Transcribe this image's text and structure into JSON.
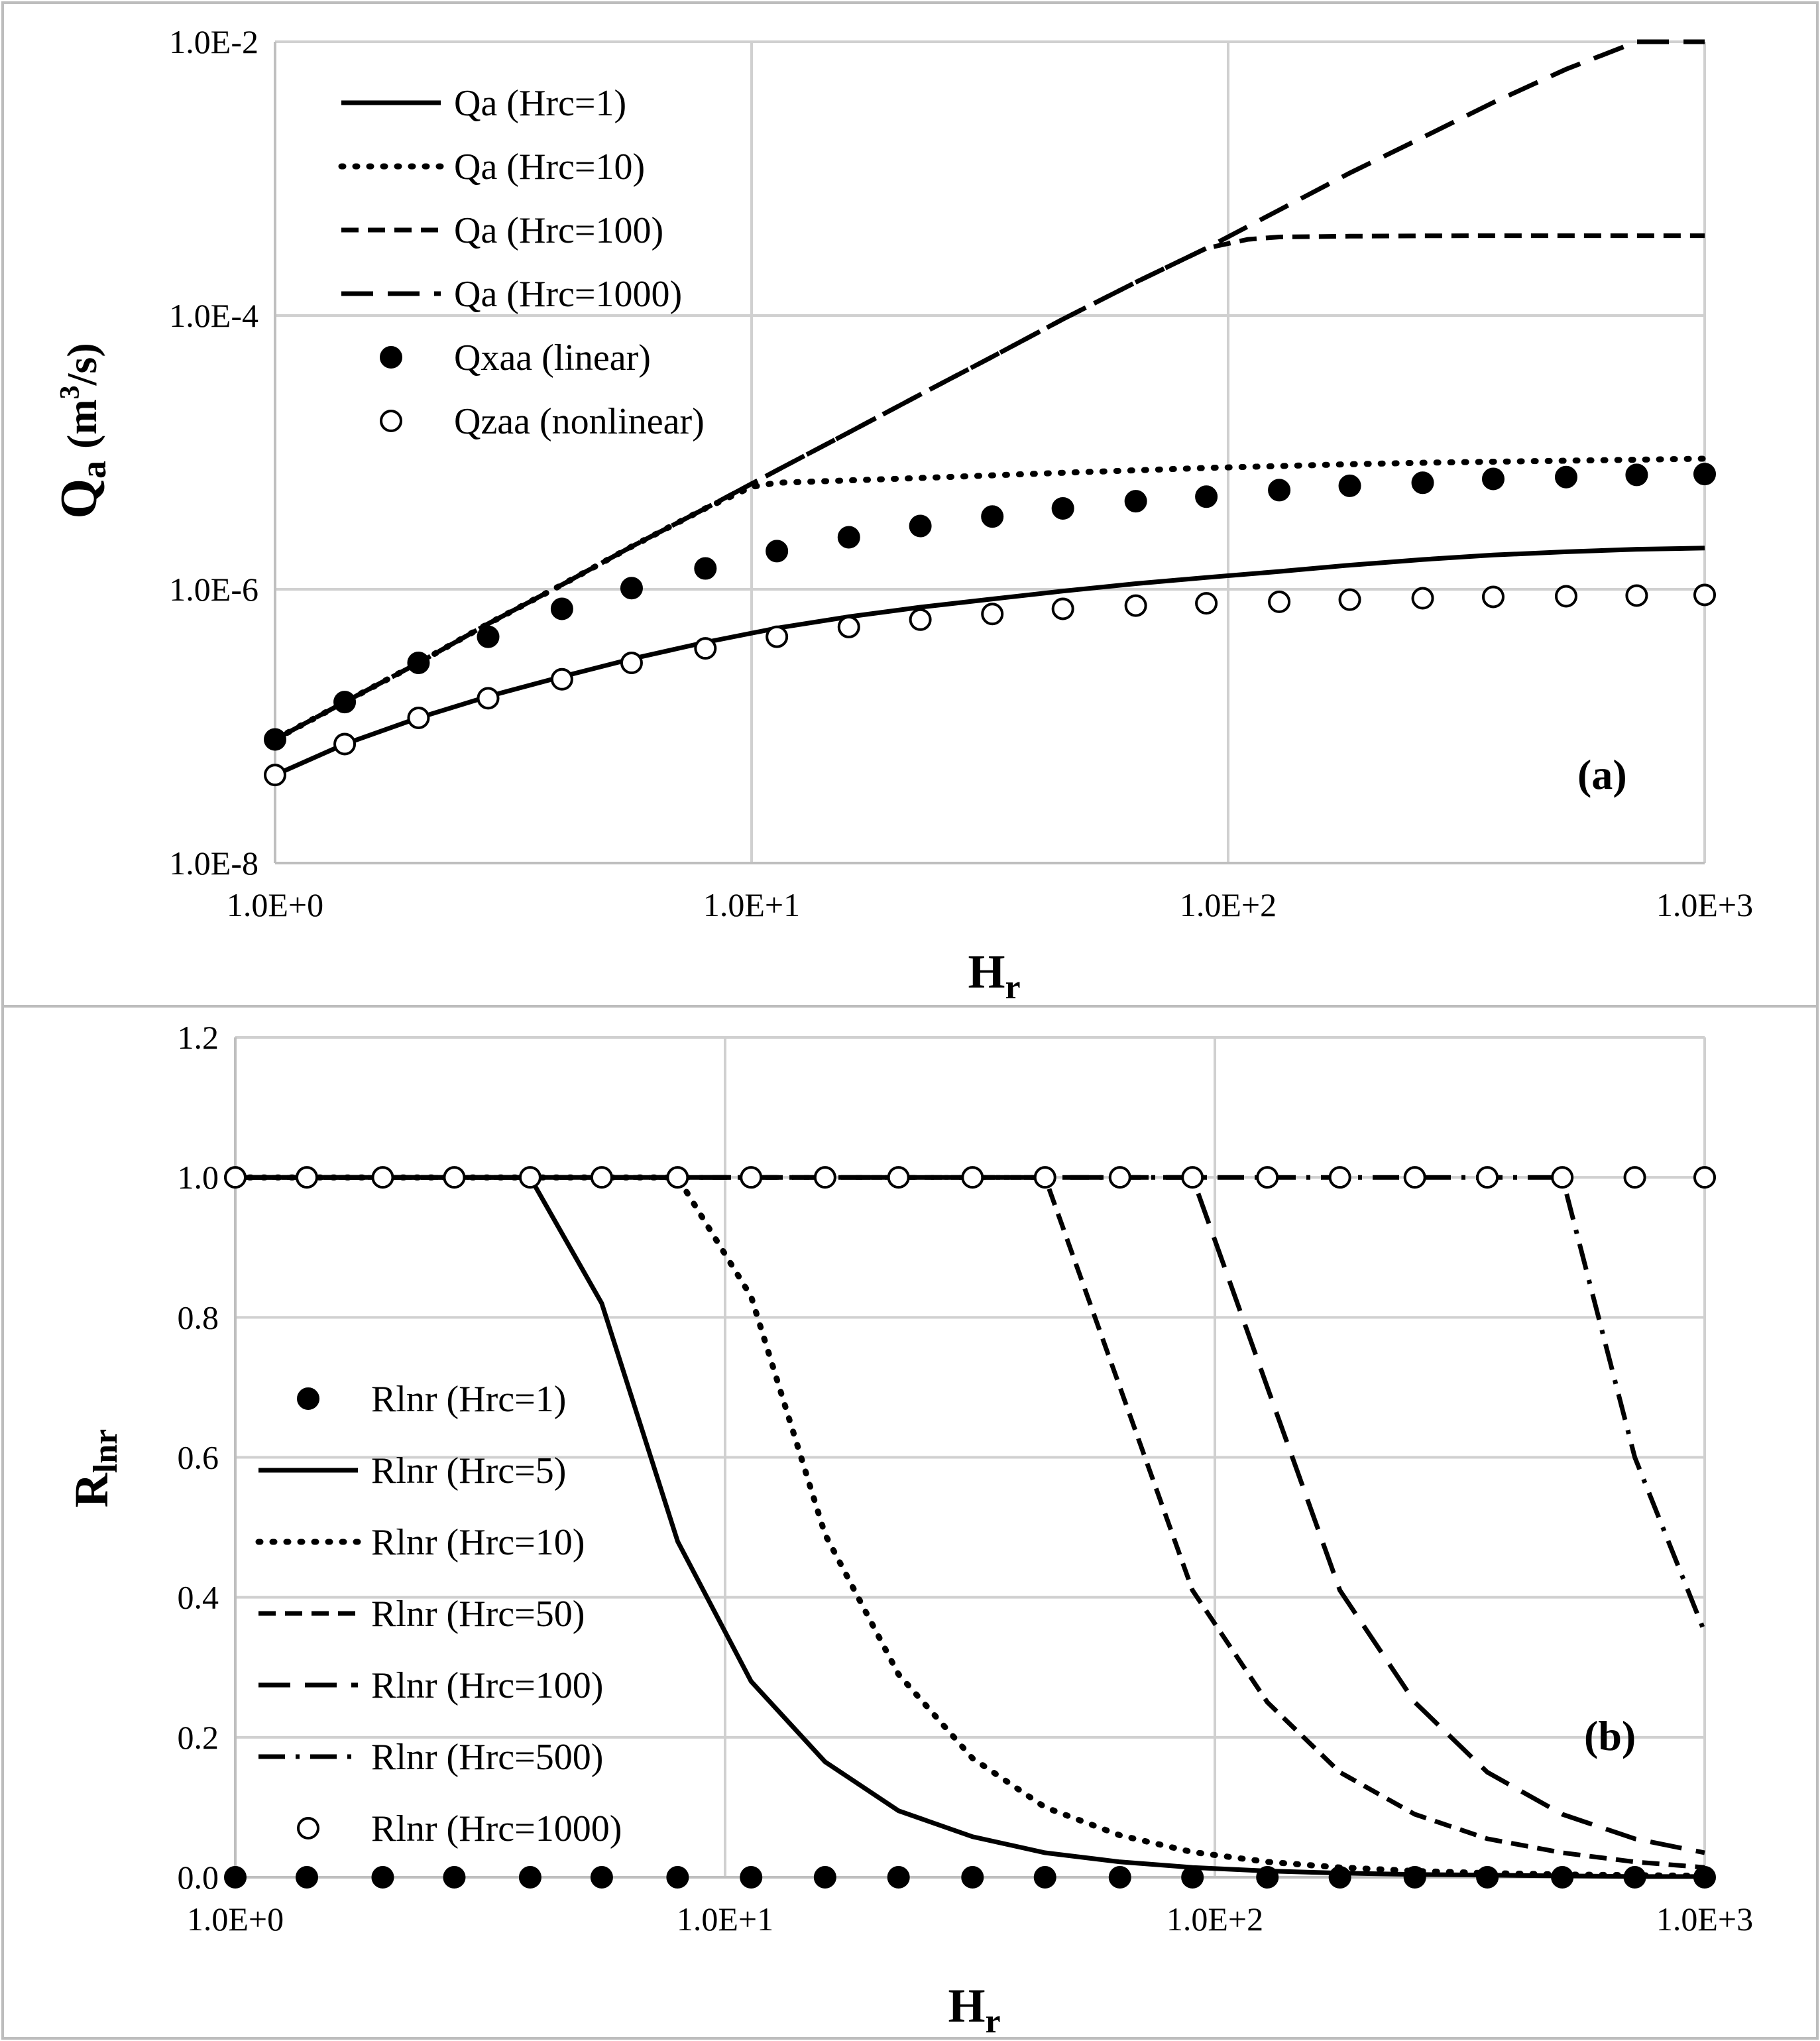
{
  "chart_data": [
    {
      "id": "a",
      "type": "line",
      "panel_label": "(a)",
      "xlabel_main": "H",
      "xlabel_sub": "r",
      "ylabel_main": "Q",
      "ylabel_sub": "a",
      "ylabel_unit_pre": "(m",
      "ylabel_unit_sup": "3",
      "ylabel_unit_post": "/s)",
      "xscale": "log",
      "yscale": "log",
      "xlim": [
        1,
        1000
      ],
      "ylim": [
        1e-08,
        0.01
      ],
      "grid": true,
      "legend_position": "top-left",
      "xticks": [
        {
          "v": 1,
          "label": "1.0E+0"
        },
        {
          "v": 10,
          "label": "1.0E+1"
        },
        {
          "v": 100,
          "label": "1.0E+2"
        },
        {
          "v": 1000,
          "label": "1.0E+3"
        }
      ],
      "yticks": [
        {
          "v": 1e-08,
          "label": "1.0E-8"
        },
        {
          "v": 1e-06,
          "label": "1.0E-6"
        },
        {
          "v": 0.0001,
          "label": "1.0E-4"
        },
        {
          "v": 0.01,
          "label": "1.0E-2"
        }
      ],
      "x_points": [
        1,
        1.4,
        2,
        2.8,
        4,
        5.6,
        8,
        11.3,
        16,
        22.6,
        32,
        45,
        64,
        90,
        128,
        180,
        256,
        360,
        512,
        720,
        1000
      ],
      "series": [
        {
          "name": "Qa (Hrc=1)",
          "style": "solid",
          "x": [
            1,
            1.4,
            2,
            2.8,
            4,
            5.6,
            8,
            11.3,
            16,
            22.6,
            32,
            45,
            64,
            90,
            128,
            180,
            256,
            360,
            512,
            720,
            1000
          ],
          "y": [
            4.4e-08,
            7.4e-08,
            1.15e-07,
            1.65e-07,
            2.3e-07,
            3.1e-07,
            4.1e-07,
            5.2e-07,
            6.3e-07,
            7.4e-07,
            8.5e-07,
            9.7e-07,
            1.1e-06,
            1.22e-06,
            1.35e-06,
            1.5e-06,
            1.65e-06,
            1.78e-06,
            1.88e-06,
            1.96e-06,
            2e-06
          ]
        },
        {
          "name": "Qa (Hrc=10)",
          "style": "dotted",
          "x": [
            1,
            1.4,
            2,
            2.8,
            4,
            5.6,
            8,
            10,
            11.3,
            16,
            22.6,
            32,
            45,
            64,
            90,
            128,
            180,
            256,
            360,
            512,
            720,
            1000
          ],
          "y": [
            8e-08,
            1.5e-07,
            2.9e-07,
            5.6e-07,
            1.08e-06,
            2.05e-06,
            3.9e-06,
            5.6e-06,
            6e-06,
            6.25e-06,
            6.5e-06,
            6.8e-06,
            7.1e-06,
            7.4e-06,
            7.7e-06,
            7.95e-06,
            8.2e-06,
            8.4e-06,
            8.55e-06,
            8.7e-06,
            8.85e-06,
            9e-06
          ]
        },
        {
          "name": "Qa (Hrc=100)",
          "style": "short-dash",
          "x": [
            1,
            1.4,
            2,
            2.8,
            4,
            5.6,
            8,
            11.3,
            16,
            22.6,
            32,
            45,
            64,
            90,
            110,
            128,
            180,
            256,
            360,
            512,
            720,
            1000
          ],
          "y": [
            8e-08,
            1.5e-07,
            2.9e-07,
            5.6e-07,
            1.08e-06,
            2.05e-06,
            3.9e-06,
            7.4e-06,
            1.4e-05,
            2.65e-05,
            5e-05,
            9.4e-05,
            0.000175,
            0.00031,
            0.00036,
            0.000375,
            0.00038,
            0.000382,
            0.000383,
            0.000383,
            0.000383,
            0.000383
          ]
        },
        {
          "name": "Qa (Hrc=1000)",
          "style": "long-dash",
          "x": [
            1,
            1.4,
            2,
            2.8,
            4,
            5.6,
            8,
            11.3,
            16,
            22.6,
            32,
            45,
            64,
            90,
            128,
            180,
            256,
            360,
            512,
            720,
            1000
          ],
          "y": [
            8e-08,
            1.5e-07,
            2.9e-07,
            5.6e-07,
            1.08e-06,
            2.05e-06,
            3.9e-06,
            7.4e-06,
            1.4e-05,
            2.65e-05,
            5e-05,
            9.4e-05,
            0.000175,
            0.00031,
            0.00059,
            0.0011,
            0.002,
            0.0036,
            0.0063,
            0.0105,
            0.0135
          ]
        },
        {
          "name": "Qxaa (linear)",
          "style": "filled-marker",
          "x": [
            1,
            1.4,
            2,
            2.8,
            4,
            5.6,
            8,
            11.3,
            16,
            22.6,
            32,
            45,
            64,
            90,
            128,
            180,
            256,
            360,
            512,
            720,
            1000
          ],
          "y": [
            8e-08,
            1.5e-07,
            2.9e-07,
            4.5e-07,
            7.2e-07,
            1.02e-06,
            1.42e-06,
            1.9e-06,
            2.4e-06,
            2.9e-06,
            3.4e-06,
            3.9e-06,
            4.4e-06,
            4.75e-06,
            5.3e-06,
            5.7e-06,
            6e-06,
            6.4e-06,
            6.6e-06,
            6.85e-06,
            6.95e-06
          ]
        },
        {
          "name": "Qzaa (nonlinear)",
          "style": "hollow-marker",
          "x": [
            1,
            1.4,
            2,
            2.8,
            4,
            5.6,
            8,
            11.3,
            16,
            22.6,
            32,
            45,
            64,
            90,
            128,
            180,
            256,
            360,
            512,
            720,
            1000
          ],
          "y": [
            4.4e-08,
            7.4e-08,
            1.15e-07,
            1.6e-07,
            2.2e-07,
            2.9e-07,
            3.7e-07,
            4.5e-07,
            5.3e-07,
            6e-07,
            6.6e-07,
            7.2e-07,
            7.6e-07,
            7.9e-07,
            8.1e-07,
            8.4e-07,
            8.6e-07,
            8.8e-07,
            8.9e-07,
            9e-07,
            9.1e-07
          ]
        }
      ]
    },
    {
      "id": "b",
      "type": "line",
      "panel_label": "(b)",
      "xlabel_main": "H",
      "xlabel_sub": "r",
      "ylabel_main": "R",
      "ylabel_sub": "lnr",
      "xscale": "log",
      "yscale": "linear",
      "xlim": [
        1,
        1000
      ],
      "ylim": [
        0,
        1.2
      ],
      "grid": true,
      "legend_position": "lower-left",
      "xticks": [
        {
          "v": 1,
          "label": "1.0E+0"
        },
        {
          "v": 10,
          "label": "1.0E+1"
        },
        {
          "v": 100,
          "label": "1.0E+2"
        },
        {
          "v": 1000,
          "label": "1.0E+3"
        }
      ],
      "yticks": [
        {
          "v": 0,
          "label": "0.0"
        },
        {
          "v": 0.2,
          "label": "0.2"
        },
        {
          "v": 0.4,
          "label": "0.4"
        },
        {
          "v": 0.6,
          "label": "0.6"
        },
        {
          "v": 0.8,
          "label": "0.8"
        },
        {
          "v": 1.0,
          "label": "1.0"
        },
        {
          "v": 1.2,
          "label": "1.2"
        }
      ],
      "series": [
        {
          "name": "Rlnr (Hrc=1)",
          "style": "filled-marker",
          "x": [
            1,
            1.4,
            2,
            2.8,
            4,
            5.6,
            8,
            11.3,
            16,
            22.6,
            32,
            45,
            64,
            90,
            128,
            180,
            256,
            360,
            512,
            720,
            1000
          ],
          "y": [
            0,
            0,
            0,
            0,
            0,
            0,
            0,
            0,
            0,
            0,
            0,
            0,
            0,
            0,
            0,
            0,
            0,
            0,
            0,
            0,
            0
          ]
        },
        {
          "name": "Rlnr (Hrc=5)",
          "style": "solid",
          "x": [
            1,
            1.4,
            2,
            2.8,
            4,
            5.6,
            8,
            11.3,
            16,
            22.6,
            32,
            45,
            64,
            90,
            128,
            180,
            256,
            360,
            512,
            720,
            1000
          ],
          "y": [
            1.0,
            1.0,
            1.0,
            1.0,
            1.0,
            0.82,
            0.48,
            0.28,
            0.165,
            0.095,
            0.058,
            0.035,
            0.022,
            0.014,
            0.009,
            0.006,
            0.004,
            0.003,
            0.002,
            0.001,
            0.001
          ]
        },
        {
          "name": "Rlnr (Hrc=10)",
          "style": "dotted",
          "x": [
            1,
            1.4,
            2,
            2.8,
            4,
            5.6,
            8,
            11.3,
            16,
            22.6,
            32,
            45,
            64,
            90,
            128,
            180,
            256,
            360,
            512,
            720,
            1000
          ],
          "y": [
            1.0,
            1.0,
            1.0,
            1.0,
            1.0,
            1.0,
            1.0,
            0.83,
            0.49,
            0.29,
            0.17,
            0.1,
            0.06,
            0.036,
            0.022,
            0.014,
            0.009,
            0.006,
            0.004,
            0.003,
            0.002
          ]
        },
        {
          "name": "Rlnr (Hrc=50)",
          "style": "short-dash",
          "x": [
            1,
            1.4,
            2,
            2.8,
            4,
            5.6,
            8,
            11.3,
            16,
            22.6,
            32,
            45,
            64,
            90,
            128,
            180,
            256,
            360,
            512,
            720,
            1000
          ],
          "y": [
            1.0,
            1.0,
            1.0,
            1.0,
            1.0,
            1.0,
            1.0,
            1.0,
            1.0,
            1.0,
            1.0,
            1.0,
            0.7,
            0.41,
            0.25,
            0.15,
            0.09,
            0.055,
            0.035,
            0.022,
            0.014
          ]
        },
        {
          "name": "Rlnr (Hrc=100)",
          "style": "long-dash",
          "x": [
            1,
            1.4,
            2,
            2.8,
            4,
            5.6,
            8,
            11.3,
            16,
            22.6,
            32,
            45,
            64,
            90,
            128,
            180,
            256,
            360,
            512,
            720,
            1000
          ],
          "y": [
            1.0,
            1.0,
            1.0,
            1.0,
            1.0,
            1.0,
            1.0,
            1.0,
            1.0,
            1.0,
            1.0,
            1.0,
            1.0,
            1.0,
            0.7,
            0.41,
            0.25,
            0.15,
            0.09,
            0.055,
            0.035
          ]
        },
        {
          "name": "Rlnr (Hrc=500)",
          "style": "dash-dot",
          "x": [
            1,
            1.4,
            2,
            2.8,
            4,
            5.6,
            8,
            11.3,
            16,
            22.6,
            32,
            45,
            64,
            90,
            128,
            180,
            256,
            360,
            512,
            720,
            1000
          ],
          "y": [
            1.0,
            1.0,
            1.0,
            1.0,
            1.0,
            1.0,
            1.0,
            1.0,
            1.0,
            1.0,
            1.0,
            1.0,
            1.0,
            1.0,
            1.0,
            1.0,
            1.0,
            1.0,
            1.0,
            0.6,
            0.35
          ]
        },
        {
          "name": "Rlnr (Hrc=1000)",
          "style": "hollow-marker",
          "x": [
            1,
            1.4,
            2,
            2.8,
            4,
            5.6,
            8,
            11.3,
            16,
            22.6,
            32,
            45,
            64,
            90,
            128,
            180,
            256,
            360,
            512,
            720,
            1000
          ],
          "y": [
            1.0,
            1.0,
            1.0,
            1.0,
            1.0,
            1.0,
            1.0,
            1.0,
            1.0,
            1.0,
            1.0,
            1.0,
            1.0,
            1.0,
            1.0,
            1.0,
            1.0,
            1.0,
            1.0,
            1.0,
            1.0
          ]
        }
      ]
    }
  ],
  "colors": {
    "line": "#000000",
    "grid": "#d0d0d0",
    "background": "#ffffff"
  }
}
